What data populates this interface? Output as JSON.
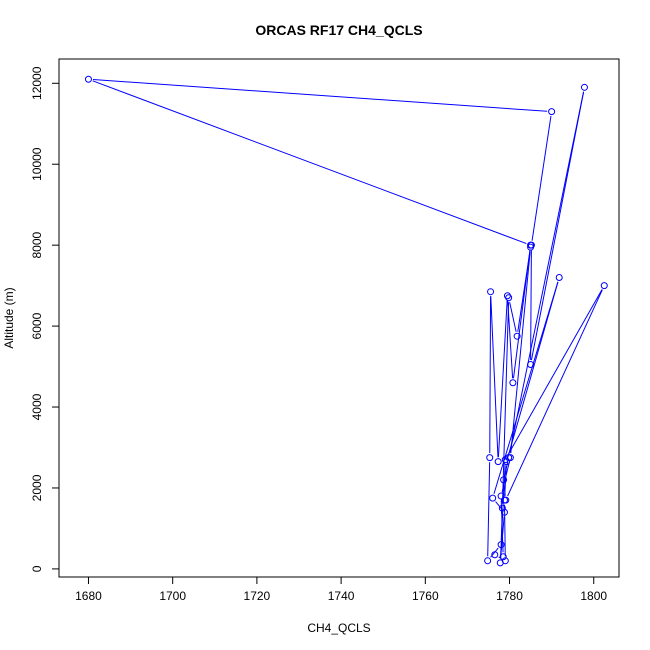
{
  "chart_data": {
    "type": "line",
    "title": "ORCAS RF17 CH4_QCLS",
    "xlabel": "CH4_QCLS",
    "ylabel": "Altitude (m)",
    "xlim": [
      1673,
      1806
    ],
    "ylim": [
      -200,
      12600
    ],
    "x_ticks": [
      1680,
      1700,
      1720,
      1740,
      1760,
      1780,
      1800
    ],
    "y_ticks": [
      0,
      2000,
      4000,
      6000,
      8000,
      10000,
      12000
    ],
    "grid": false,
    "legend": "none",
    "colors": {
      "series": "#0000ff",
      "axes": "#000000"
    },
    "series": [
      {
        "points": [
          [
            1776.5,
            350
          ],
          [
            1779.0,
            200
          ],
          [
            1778.8,
            1700
          ],
          [
            1779.3,
            2650
          ],
          [
            1791.8,
            7200
          ],
          [
            1776.0,
            1750
          ],
          [
            1778.8,
            1400
          ],
          [
            1777.8,
            150
          ],
          [
            1779.0,
            2700
          ],
          [
            1802.5,
            7000
          ],
          [
            1779.1,
            1700
          ],
          [
            1778.6,
            2200
          ],
          [
            1779.8,
            2750
          ],
          [
            1797.8,
            11900
          ],
          [
            1785.0,
            5050
          ],
          [
            1785.2,
            8000
          ],
          [
            1790.0,
            11300
          ],
          [
            1680.0,
            12100
          ],
          [
            1785.0,
            8000
          ],
          [
            1780.8,
            4600
          ],
          [
            1779.5,
            6750
          ],
          [
            1777.3,
            2650
          ],
          [
            1775.5,
            6850
          ],
          [
            1775.3,
            2750
          ],
          [
            1774.8,
            200
          ],
          [
            1778.0,
            600
          ],
          [
            1778.3,
            1500
          ],
          [
            1779.8,
            6700
          ],
          [
            1781.8,
            5750
          ],
          [
            1785.0,
            7950
          ],
          [
            1780.2,
            2750
          ],
          [
            1778.0,
            1800
          ],
          [
            1778.5,
            300
          ]
        ]
      }
    ]
  }
}
